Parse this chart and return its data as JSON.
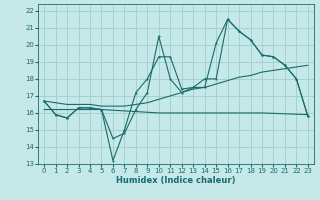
{
  "xlabel": "Humidex (Indice chaleur)",
  "background_color": "#c5e8e8",
  "grid_color": "#a8d0d0",
  "line_color": "#1a6b6b",
  "xlim": [
    -0.5,
    23.5
  ],
  "ylim": [
    13,
    22.4
  ],
  "yticks": [
    13,
    14,
    15,
    16,
    17,
    18,
    19,
    20,
    21,
    22
  ],
  "xticks": [
    0,
    1,
    2,
    3,
    4,
    5,
    6,
    7,
    8,
    9,
    10,
    11,
    12,
    13,
    14,
    15,
    16,
    17,
    18,
    19,
    20,
    21,
    22,
    23
  ],
  "line1_x": [
    0,
    1,
    2,
    3,
    4,
    5,
    6,
    7,
    8,
    9,
    10,
    11,
    12,
    13,
    14,
    15,
    16,
    17,
    18,
    19,
    20,
    21,
    22,
    23
  ],
  "line1_y": [
    16.7,
    15.9,
    15.7,
    16.3,
    16.3,
    16.2,
    14.5,
    14.8,
    16.2,
    17.2,
    20.5,
    18.0,
    17.2,
    17.5,
    17.5,
    20.1,
    21.5,
    20.8,
    20.3,
    19.4,
    19.3,
    18.8,
    18.0,
    15.8
  ],
  "line2_x": [
    0,
    1,
    2,
    3,
    4,
    5,
    6,
    7,
    8,
    9,
    10,
    11,
    12,
    13,
    14,
    15,
    16,
    17,
    18,
    19,
    20,
    21,
    22,
    23
  ],
  "line2_y": [
    16.7,
    15.9,
    15.7,
    16.3,
    16.3,
    16.2,
    13.2,
    15.0,
    17.2,
    18.0,
    19.3,
    19.3,
    17.4,
    17.5,
    18.0,
    18.0,
    21.5,
    20.8,
    20.3,
    19.4,
    19.3,
    18.8,
    18.0,
    15.8
  ],
  "line3_x": [
    0,
    1,
    2,
    3,
    4,
    5,
    6,
    7,
    8,
    9,
    10,
    11,
    12,
    13,
    14,
    15,
    16,
    17,
    18,
    19,
    20,
    21,
    22,
    23
  ],
  "line3_y": [
    16.7,
    16.6,
    16.5,
    16.5,
    16.5,
    16.4,
    16.4,
    16.4,
    16.5,
    16.6,
    16.8,
    17.0,
    17.2,
    17.4,
    17.5,
    17.7,
    17.9,
    18.1,
    18.2,
    18.4,
    18.5,
    18.6,
    18.7,
    18.8
  ],
  "line4_x": [
    0,
    5,
    10,
    19,
    23
  ],
  "line4_y": [
    16.2,
    16.2,
    16.0,
    16.0,
    15.9
  ]
}
